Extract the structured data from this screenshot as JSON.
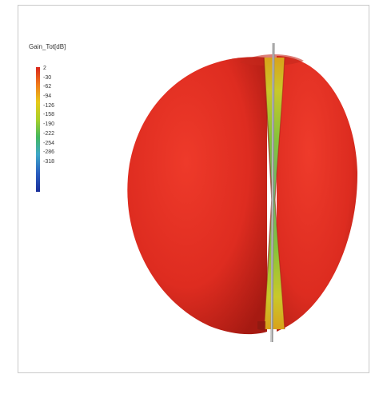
{
  "legend": {
    "title": "Gain_Tot[dB]",
    "ticks": [
      "2",
      "-30",
      "-62",
      "-94",
      "-126",
      "-158",
      "-190",
      "-222",
      "-254",
      "-286",
      "-318"
    ],
    "colors": [
      "#d9261c",
      "#f07a1a",
      "#e7c91a",
      "#a9d02a",
      "#44b85e",
      "#3fa8c8",
      "#2a5fc0",
      "#1a2f9a"
    ]
  },
  "pattern": {
    "body_color": "#dd2b20",
    "null_color": "#7fbf3a",
    "axis_color": "#8f8f8f"
  }
}
